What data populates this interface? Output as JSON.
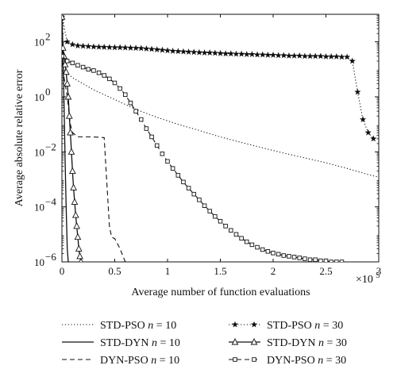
{
  "chart_data": {
    "type": "line",
    "title": "",
    "xlabel": "Average number of function evaluations",
    "ylabel": "Average absolute relative error",
    "x_multiplier_label": "×10",
    "x_multiplier_exponent": "5",
    "xlim": [
      0,
      3
    ],
    "ylim": [
      1e-06,
      1000
    ],
    "yscale": "log",
    "grid": false,
    "legend_position": "bottom",
    "x_ticks": [
      0,
      0.5,
      1,
      1.5,
      2,
      2.5,
      3
    ],
    "x_tick_labels": [
      "0",
      "0.5",
      "1",
      "1.5",
      "2",
      "2.5",
      "3"
    ],
    "y_ticks": [
      1e-06,
      0.0001,
      0.01,
      1,
      100
    ],
    "y_tick_base": [
      "10",
      "10",
      "10",
      "10",
      "10"
    ],
    "y_tick_exp": [
      "−6",
      "−4",
      "−2",
      "0",
      "2"
    ],
    "series": [
      {
        "name": "STD-PSO",
        "name_n": "n",
        "name_eq": " = 10",
        "style": "dotted",
        "marker": "none",
        "x": [
          0,
          0.02,
          0.05,
          0.1,
          0.2,
          0.3,
          0.5,
          0.7,
          0.9,
          1.1,
          1.3,
          1.5,
          1.7,
          1.9,
          2.1,
          2.3,
          2.5,
          2.7,
          2.9,
          3.0
        ],
        "y": [
          20,
          10,
          7,
          5,
          3,
          1.8,
          0.8,
          0.35,
          0.18,
          0.1,
          0.06,
          0.035,
          0.022,
          0.014,
          0.009,
          0.006,
          0.004,
          0.0025,
          0.0015,
          0.0012
        ]
      },
      {
        "name": "STD-DYN",
        "name_n": "n",
        "name_eq": " = 10",
        "style": "solid",
        "marker": "none",
        "x": [
          0,
          0.01,
          0.02,
          0.03,
          0.04,
          0.05,
          0.06
        ],
        "y": [
          500,
          30,
          0.5,
          0.005,
          0.0001,
          3e-06,
          1e-06
        ]
      },
      {
        "name": "DYN-PSO",
        "name_n": "n",
        "name_eq": " = 10",
        "style": "dashed",
        "marker": "none",
        "x": [
          0,
          0.02,
          0.05,
          0.08,
          0.1,
          0.15,
          0.2,
          0.3,
          0.4,
          0.45,
          0.47,
          0.5,
          0.55,
          0.6
        ],
        "y": [
          20,
          5,
          1,
          0.1,
          0.05,
          0.035,
          0.035,
          0.035,
          0.033,
          2e-05,
          8e-06,
          7e-06,
          3e-06,
          1e-06
        ]
      },
      {
        "name": "STD-PSO",
        "name_n": "n",
        "name_eq": " = 30",
        "style": "dotted",
        "marker": "star",
        "x": [
          0,
          0.05,
          0.1,
          0.15,
          0.2,
          0.25,
          0.3,
          0.35,
          0.4,
          0.45,
          0.5,
          0.55,
          0.6,
          0.65,
          0.7,
          0.75,
          0.8,
          0.85,
          0.9,
          0.95,
          1.0,
          1.05,
          1.1,
          1.15,
          1.2,
          1.25,
          1.3,
          1.35,
          1.4,
          1.45,
          1.5,
          1.55,
          1.6,
          1.65,
          1.7,
          1.75,
          1.8,
          1.85,
          1.9,
          1.95,
          2.0,
          2.05,
          2.1,
          2.15,
          2.2,
          2.25,
          2.3,
          2.35,
          2.4,
          2.45,
          2.5,
          2.55,
          2.6,
          2.65,
          2.7,
          2.75,
          2.8,
          2.85,
          2.9,
          2.95
        ],
        "y": [
          800,
          100,
          80,
          72,
          70,
          68,
          66,
          65,
          64,
          63,
          62,
          62,
          61,
          60,
          59,
          58,
          56,
          54,
          52,
          50,
          48,
          46,
          45,
          44,
          43,
          42,
          41,
          40,
          40,
          39,
          38,
          37,
          37,
          36,
          36,
          35,
          35,
          34,
          34,
          33,
          33,
          32,
          32,
          31,
          31,
          31,
          30,
          30,
          30,
          30,
          29,
          29,
          29,
          28,
          28,
          20,
          1.5,
          0.15,
          0.05,
          0.03
        ]
      },
      {
        "name": "STD-DYN",
        "name_n": "n",
        "name_eq": " = 30",
        "style": "solid",
        "marker": "triangle",
        "x": [
          0,
          0.01,
          0.02,
          0.03,
          0.04,
          0.05,
          0.06,
          0.07,
          0.08,
          0.09,
          0.1,
          0.11,
          0.12,
          0.13,
          0.14,
          0.15,
          0.16,
          0.17,
          0.18
        ],
        "y": [
          800,
          60,
          30,
          15,
          8,
          3,
          1,
          0.2,
          0.05,
          0.01,
          0.002,
          0.0005,
          0.00015,
          5e-05,
          2e-05,
          8e-06,
          3e-06,
          1.6e-06,
          1e-06
        ]
      },
      {
        "name": "DYN-PSO",
        "name_n": "n",
        "name_eq": " = 30",
        "style": "dashed",
        "marker": "square",
        "x": [
          0,
          0.05,
          0.1,
          0.15,
          0.2,
          0.25,
          0.3,
          0.35,
          0.4,
          0.45,
          0.5,
          0.55,
          0.6,
          0.65,
          0.7,
          0.75,
          0.8,
          0.85,
          0.9,
          0.95,
          1.0,
          1.05,
          1.1,
          1.15,
          1.2,
          1.25,
          1.3,
          1.35,
          1.4,
          1.45,
          1.5,
          1.55,
          1.6,
          1.65,
          1.7,
          1.75,
          1.8,
          1.85,
          1.9,
          1.95,
          2.0,
          2.05,
          2.1,
          2.15,
          2.2,
          2.25,
          2.3,
          2.35,
          2.4,
          2.45,
          2.5,
          2.55,
          2.6,
          2.65
        ],
        "y": [
          30,
          20,
          17,
          14,
          12,
          10,
          9,
          7.5,
          6,
          4.5,
          3.2,
          2,
          1.2,
          0.6,
          0.3,
          0.15,
          0.07,
          0.035,
          0.017,
          0.0085,
          0.0045,
          0.0025,
          0.0014,
          0.0008,
          0.00048,
          0.00029,
          0.00018,
          0.00011,
          7e-05,
          4.5e-05,
          3e-05,
          2e-05,
          1.4e-05,
          1e-05,
          7.2e-06,
          5.4e-06,
          4.2e-06,
          3.4e-06,
          2.8e-06,
          2.4e-06,
          2.1e-06,
          1.9e-06,
          1.7e-06,
          1.6e-06,
          1.5e-06,
          1.4e-06,
          1.3e-06,
          1.2e-06,
          1.2e-06,
          1.1e-06,
          1.1e-06,
          1e-06,
          1e-06,
          1e-06
        ]
      }
    ]
  }
}
